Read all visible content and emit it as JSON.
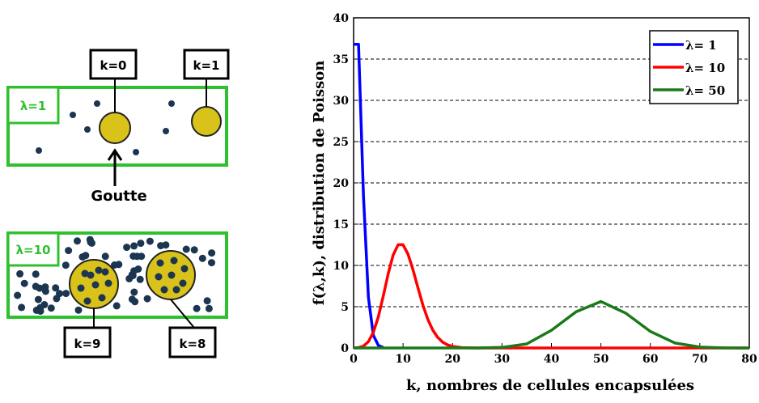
{
  "diagram": {
    "k0": "k=0",
    "k1": "k=1",
    "lambda1": "λ=1",
    "goutte": "Goutte",
    "lambda10": "λ=10",
    "k9": "k=9",
    "k8": "k=8"
  },
  "chart_data": {
    "type": "line",
    "xlabel": "k, nombres de cellules encapsulées",
    "ylabel": "f(λ,k), distribution de Poisson",
    "xlim": [
      0,
      80
    ],
    "xticks": [
      0,
      10,
      20,
      30,
      40,
      50,
      60,
      70,
      80
    ],
    "ylim": [
      0,
      40
    ],
    "yticks": [
      0,
      5,
      10,
      15,
      20,
      25,
      30,
      35,
      40
    ],
    "grid": true,
    "legend": "upper right",
    "series": [
      {
        "name": "λ= 1",
        "color": "#0000ff",
        "x": [
          0,
          1,
          2,
          3,
          4,
          5,
          6
        ],
        "values": [
          36.79,
          36.79,
          18.39,
          6.13,
          1.53,
          0.31,
          0.05
        ]
      },
      {
        "name": "λ= 10",
        "color": "#ff0000",
        "x": [
          0,
          1,
          2,
          3,
          4,
          5,
          6,
          7,
          8,
          9,
          10,
          11,
          12,
          13,
          14,
          15,
          16,
          17,
          18,
          19,
          20,
          22,
          25,
          80
        ],
        "values": [
          0,
          0.05,
          0.23,
          0.76,
          1.89,
          3.78,
          6.31,
          9.01,
          11.26,
          12.51,
          12.51,
          11.37,
          9.48,
          7.29,
          5.21,
          3.47,
          2.17,
          1.28,
          0.71,
          0.37,
          0.19,
          0.04,
          0,
          0
        ]
      },
      {
        "name": "λ= 50",
        "color": "#1a7a1a",
        "x": [
          0,
          20,
          25,
          30,
          35,
          40,
          45,
          50,
          55,
          60,
          65,
          70,
          75,
          80
        ],
        "values": [
          0,
          0,
          0,
          0.07,
          0.49,
          2.15,
          4.39,
          5.63,
          4.23,
          2,
          0.6,
          0.11,
          0.01,
          0
        ]
      }
    ]
  }
}
